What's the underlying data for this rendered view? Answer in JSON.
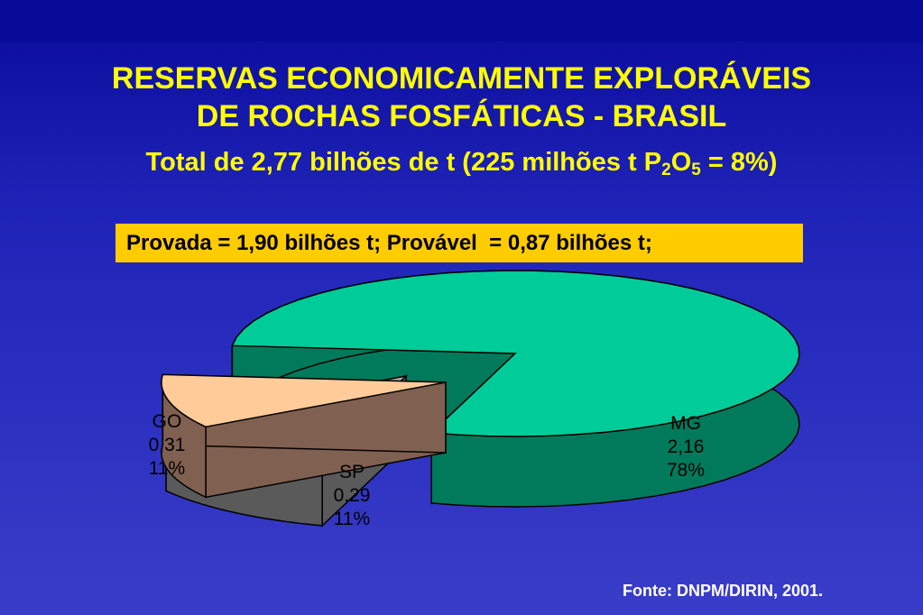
{
  "chart_data": {
    "type": "pie",
    "title_line1": "RESERVAS ECONOMICAMENTE EXPLORÁVEIS",
    "title_line2": "DE ROCHAS FOSFÁTICAS - BRASIL",
    "subtitle": {
      "prefix": "Total de 2,77 bilhões de t (225 milhões t P",
      "sub1": "2",
      "mid": "O",
      "sub2": "5",
      "suffix": " = 8%)"
    },
    "note": "Provada = 1,90 bilhões t; Provável  = 0,87 bilhões t;",
    "slices": [
      {
        "name": "MG",
        "value": 2.16,
        "value_label": "2,16",
        "percent_label": "78%",
        "color": "#00cc99",
        "side_color": "#007a5a"
      },
      {
        "name": "GO",
        "value": 0.31,
        "value_label": "0,31",
        "percent_label": "11%",
        "color": "#b3b3b3",
        "side_color": "#5a5a5a"
      },
      {
        "name": "SP",
        "value": 0.29,
        "value_label": "0,29",
        "percent_label": "11%",
        "color": "#ffcc99",
        "side_color": "#806050"
      }
    ],
    "source": "Fonte: DNPM/DIRIN, 2001."
  }
}
